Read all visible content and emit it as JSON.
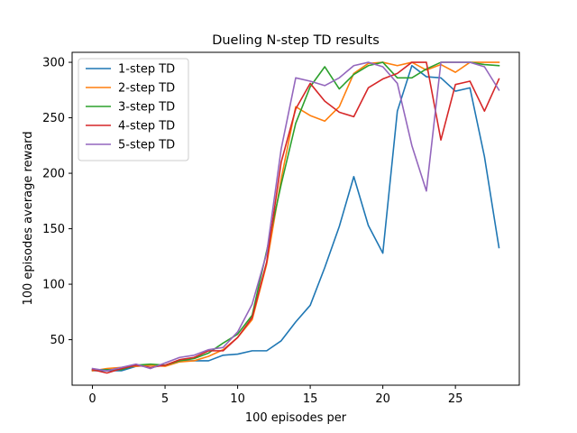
{
  "chart_data": {
    "type": "line",
    "title": "Dueling N-step TD results",
    "xlabel": "100 episodes per",
    "ylabel": "100 episodes average reward",
    "xlim": [
      -1.4,
      29.4
    ],
    "ylim": [
      9,
      309
    ],
    "xticks": [
      0,
      5,
      10,
      15,
      20,
      25
    ],
    "yticks": [
      50,
      100,
      150,
      200,
      250,
      300
    ],
    "grid": false,
    "legend_position": "top-left",
    "x": [
      0,
      1,
      2,
      3,
      4,
      5,
      6,
      7,
      8,
      9,
      10,
      11,
      12,
      13,
      14,
      15,
      16,
      17,
      18,
      19,
      20,
      21,
      22,
      23,
      24,
      25,
      26,
      27,
      28
    ],
    "series": [
      {
        "name": "1-step TD",
        "color": "#1f77b4",
        "values": [
          22,
          22,
          22,
          26,
          27,
          27,
          31,
          31,
          31,
          36,
          37,
          40,
          40,
          49,
          66,
          81,
          115,
          152,
          197,
          153,
          128,
          256,
          297,
          287,
          286,
          274,
          277,
          215,
          133
        ]
      },
      {
        "name": "2-step TD",
        "color": "#ff7f0e",
        "values": [
          22,
          24,
          25,
          26,
          27,
          26,
          30,
          31,
          35,
          41,
          52,
          68,
          118,
          195,
          260,
          252,
          247,
          260,
          290,
          299,
          300,
          297,
          300,
          293,
          298,
          291,
          300,
          300,
          300
        ]
      },
      {
        "name": "3-step TD",
        "color": "#2ca02c",
        "values": [
          23,
          23,
          23,
          27,
          28,
          27,
          31,
          33,
          38,
          47,
          55,
          72,
          130,
          190,
          245,
          278,
          296,
          276,
          289,
          297,
          300,
          286,
          286,
          294,
          300,
          300,
          300,
          298,
          297
        ]
      },
      {
        "name": "4-step TD",
        "color": "#d62728",
        "values": [
          23,
          20,
          24,
          27,
          25,
          27,
          32,
          34,
          40,
          40,
          52,
          70,
          120,
          210,
          258,
          281,
          265,
          255,
          251,
          277,
          285,
          290,
          300,
          300,
          230,
          280,
          283,
          256,
          285
        ]
      },
      {
        "name": "5-step TD",
        "color": "#9467bd",
        "values": [
          24,
          22,
          25,
          28,
          24,
          29,
          34,
          36,
          41,
          43,
          57,
          82,
          128,
          222,
          286,
          283,
          279,
          286,
          297,
          300,
          296,
          281,
          225,
          184,
          300,
          300,
          300,
          296,
          275
        ]
      }
    ]
  }
}
